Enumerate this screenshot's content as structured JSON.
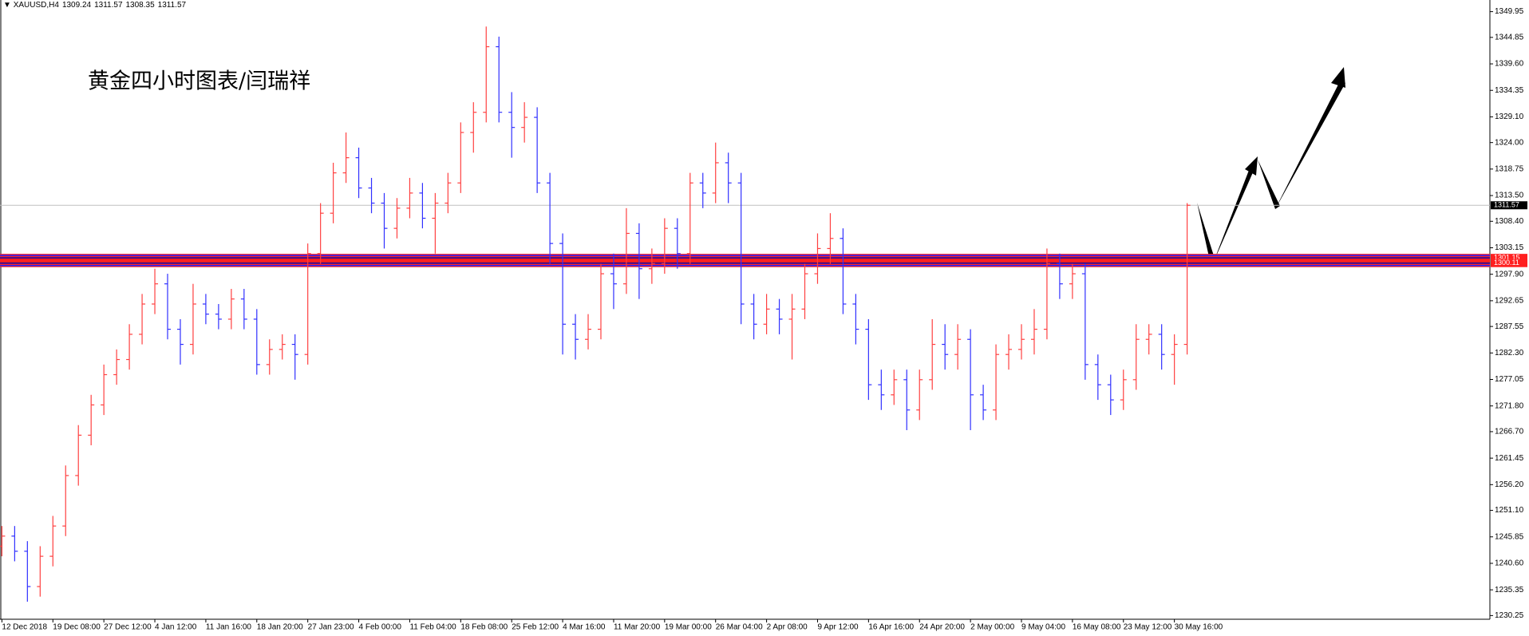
{
  "header": {
    "symbol": "XAUUSD,H4",
    "open": 1309.24,
    "high": 1311.57,
    "low": 1308.35,
    "close": 1311.57
  },
  "chart_data": {
    "type": "ohlc",
    "title": "黄金四小时图表/闫瑞祥",
    "up_color": "#ff4040",
    "down_color": "#3030ff",
    "categories": [
      "12 Dec 2018",
      null,
      null,
      null,
      "19 Dec 08:00",
      null,
      null,
      null,
      "27 Dec 12:00",
      null,
      null,
      null,
      "4 Jan 12:00",
      null,
      null,
      null,
      "11 Jan 16:00",
      null,
      null,
      null,
      "18 Jan 20:00",
      null,
      null,
      null,
      "27 Jan 23:00",
      null,
      null,
      null,
      "4 Feb 00:00",
      null,
      null,
      null,
      "11 Feb 04:00",
      null,
      null,
      null,
      "18 Feb 08:00",
      null,
      null,
      null,
      "25 Feb 12:00",
      null,
      null,
      null,
      "4 Mar 16:00",
      null,
      null,
      null,
      "11 Mar 20:00",
      null,
      null,
      null,
      "19 Mar 00:00",
      null,
      null,
      null,
      "26 Mar 04:00",
      null,
      null,
      null,
      "2 Apr 08:00",
      null,
      null,
      null,
      "9 Apr 12:00",
      null,
      null,
      null,
      "16 Apr 16:00",
      null,
      null,
      null,
      "24 Apr 20:00",
      null,
      null,
      null,
      "2 May 00:00",
      null,
      null,
      null,
      "9 May 04:00",
      null,
      null,
      null,
      "16 May 08:00",
      null,
      null,
      null,
      "23 May 12:00",
      null,
      null,
      null,
      "30 May 16:00",
      null
    ],
    "open": [
      1244,
      1246,
      1243,
      1236,
      1242,
      1248,
      1258,
      1266,
      1272,
      1278,
      1281,
      1286,
      1292,
      1296,
      1287,
      1284,
      1292,
      1290,
      1289,
      1293,
      1289,
      1280,
      1283,
      1284,
      1282,
      1302,
      1310,
      1318,
      1321,
      1315,
      1312,
      1307,
      1311,
      1314,
      1309,
      1312,
      1316,
      1326,
      1330,
      1343,
      1330,
      1327,
      1329,
      1316,
      1304,
      1288,
      1285,
      1287,
      1298,
      1296,
      1306,
      1299,
      1300,
      1307,
      1302,
      1316,
      1314,
      1320,
      1316,
      1292,
      1288,
      1291,
      1289,
      1291,
      1298,
      1303,
      1305,
      1292,
      1287,
      1276,
      1274,
      1277,
      1271,
      1277,
      1284,
      1282,
      1285,
      1274,
      1271,
      1282,
      1283,
      1285,
      1287,
      1300,
      1296,
      1298,
      1280,
      1276,
      1273,
      1277,
      1285,
      1286,
      1282,
      1284
    ],
    "high": [
      1248,
      1248,
      1245,
      1244,
      1250,
      1260,
      1268,
      1274,
      1280,
      1283,
      1288,
      1294,
      1299,
      1298,
      1289,
      1296,
      1294,
      1292,
      1295,
      1295,
      1291,
      1285,
      1286,
      1286,
      1304,
      1312,
      1320,
      1326,
      1323,
      1317,
      1314,
      1313,
      1317,
      1316,
      1314,
      1318,
      1328,
      1332,
      1347,
      1345,
      1334,
      1332,
      1331,
      1318,
      1306,
      1290,
      1290,
      1300,
      1302,
      1311,
      1308,
      1303,
      1309,
      1309,
      1318,
      1318,
      1324,
      1322,
      1318,
      1294,
      1294,
      1293,
      1294,
      1300,
      1306,
      1310,
      1307,
      1294,
      1289,
      1279,
      1279,
      1279,
      1279,
      1289,
      1288,
      1288,
      1287,
      1276,
      1284,
      1286,
      1288,
      1291,
      1303,
      1302,
      1300,
      1300,
      1282,
      1278,
      1279,
      1288,
      1288,
      1288,
      1286,
      1312
    ],
    "low": [
      1242,
      1241,
      1233,
      1234,
      1240,
      1246,
      1256,
      1264,
      1270,
      1276,
      1279,
      1284,
      1290,
      1285,
      1280,
      1282,
      1288,
      1287,
      1287,
      1287,
      1278,
      1278,
      1281,
      1277,
      1280,
      1300,
      1308,
      1316,
      1313,
      1310,
      1303,
      1305,
      1309,
      1307,
      1302,
      1310,
      1314,
      1322,
      1328,
      1328,
      1321,
      1324,
      1314,
      1300,
      1282,
      1281,
      1283,
      1285,
      1291,
      1294,
      1293,
      1296,
      1298,
      1299,
      1300,
      1311,
      1312,
      1312,
      1288,
      1285,
      1286,
      1286,
      1281,
      1289,
      1296,
      1300,
      1290,
      1284,
      1273,
      1271,
      1272,
      1267,
      1269,
      1275,
      1279,
      1279,
      1267,
      1269,
      1269,
      1279,
      1281,
      1282,
      1285,
      1293,
      1293,
      1277,
      1273,
      1270,
      1271,
      1275,
      1282,
      1279,
      1276,
      1282
    ],
    "close": [
      1246,
      1243,
      1236,
      1242,
      1248,
      1258,
      1266,
      1272,
      1278,
      1281,
      1286,
      1292,
      1296,
      1287,
      1284,
      1292,
      1290,
      1289,
      1293,
      1289,
      1280,
      1283,
      1284,
      1282,
      1302,
      1310,
      1318,
      1321,
      1315,
      1312,
      1307,
      1311,
      1314,
      1309,
      1312,
      1316,
      1326,
      1330,
      1343,
      1330,
      1327,
      1329,
      1316,
      1304,
      1288,
      1285,
      1287,
      1298,
      1296,
      1306,
      1299,
      1300,
      1307,
      1302,
      1316,
      1314,
      1320,
      1316,
      1292,
      1288,
      1291,
      1289,
      1291,
      1298,
      1303,
      1305,
      1292,
      1287,
      1276,
      1274,
      1277,
      1271,
      1277,
      1284,
      1282,
      1285,
      1274,
      1271,
      1282,
      1283,
      1285,
      1287,
      1300,
      1296,
      1298,
      1280,
      1276,
      1273,
      1277,
      1285,
      1286,
      1282,
      1284,
      1311.57
    ],
    "ylim": [
      1229.52,
      1352.26
    ],
    "yticks": [
      1349.95,
      1344.85,
      {
        "value": 1339.6,
        "label": "1339.60"
      },
      1334.35,
      {
        "value": 1329.1,
        "label": "1329.10"
      },
      {
        "value": 1324,
        "label": "1324.00"
      },
      1318.75,
      {
        "value": 1313.5,
        "label": "1313.50"
      },
      {
        "value": 1308.4,
        "label": "1308.40"
      },
      1303.15,
      {
        "value": 1297.9,
        "label": "1297.90"
      },
      1292.65,
      1287.55,
      {
        "value": 1282.3,
        "label": "1282.30"
      },
      1277.05,
      {
        "value": 1271.8,
        "label": "1271.80"
      },
      {
        "value": 1266.7,
        "label": "1266.70"
      },
      1261.45,
      {
        "value": 1256.2,
        "label": "1256.20"
      },
      {
        "value": 1251.1,
        "label": "1251.10"
      },
      1245.85,
      {
        "value": 1240.6,
        "label": "1240.60"
      },
      1235.35,
      1230.25
    ],
    "grid": false,
    "price_line": 1311.57,
    "levels": [
      1301.15,
      1300.11
    ]
  }
}
